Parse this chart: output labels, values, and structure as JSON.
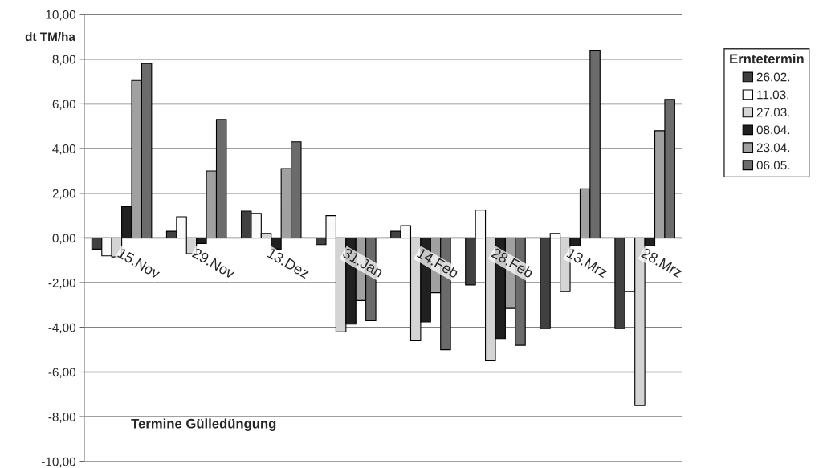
{
  "chart_data": {
    "type": "bar",
    "xlabel": "Termine Gülledüngung",
    "ylabel": "dt TM/ha",
    "legend_title": "Erntetermin",
    "categories": [
      "15.Nov",
      "29.Nov",
      "13.Dez",
      "31.Jan",
      "14.Feb",
      "28.Feb",
      "13.Mrz",
      "28.Mrz"
    ],
    "series": [
      {
        "name": "26.02.",
        "color": "#404040",
        "values": [
          -0.5,
          0.3,
          1.2,
          -0.3,
          0.3,
          -2.1,
          -4.05,
          -4.05
        ]
      },
      {
        "name": "11.03.",
        "color": "#fafafa",
        "values": [
          -0.8,
          0.95,
          1.1,
          1.0,
          0.55,
          1.25,
          0.2,
          -2.4
        ]
      },
      {
        "name": "27.03.",
        "color": "#d4d4d4",
        "values": [
          -0.85,
          -0.7,
          0.2,
          -4.2,
          -4.6,
          -5.5,
          -2.4,
          -7.5
        ]
      },
      {
        "name": "08.04.",
        "color": "#202020",
        "values": [
          1.4,
          -0.25,
          -0.5,
          -3.85,
          -3.75,
          -4.5,
          -0.35,
          -0.35
        ]
      },
      {
        "name": "23.04.",
        "color": "#a0a0a0",
        "values": [
          7.05,
          3.0,
          3.1,
          -2.8,
          -2.45,
          -3.15,
          2.2,
          4.8
        ]
      },
      {
        "name": "06.05.",
        "color": "#6b6b6b",
        "values": [
          7.8,
          5.3,
          4.3,
          -3.7,
          -5.0,
          -4.8,
          8.4,
          6.2
        ]
      }
    ],
    "ylim": [
      -10,
      10
    ],
    "yticks": [
      {
        "value": -10,
        "label": "-10,00"
      },
      {
        "value": -8,
        "label": "-8,00"
      },
      {
        "value": -6,
        "label": "-6,00"
      },
      {
        "value": -4,
        "label": "-4,00"
      },
      {
        "value": -2,
        "label": "-2,00"
      },
      {
        "value": 0,
        "label": "0,00"
      },
      {
        "value": 2,
        "label": "2,00"
      },
      {
        "value": 4,
        "label": "4,00"
      },
      {
        "value": 6,
        "label": "6,00"
      },
      {
        "value": 8,
        "label": "8,00"
      },
      {
        "value": 10,
        "label": "10,00"
      }
    ],
    "grid": "y",
    "legend": "right"
  }
}
